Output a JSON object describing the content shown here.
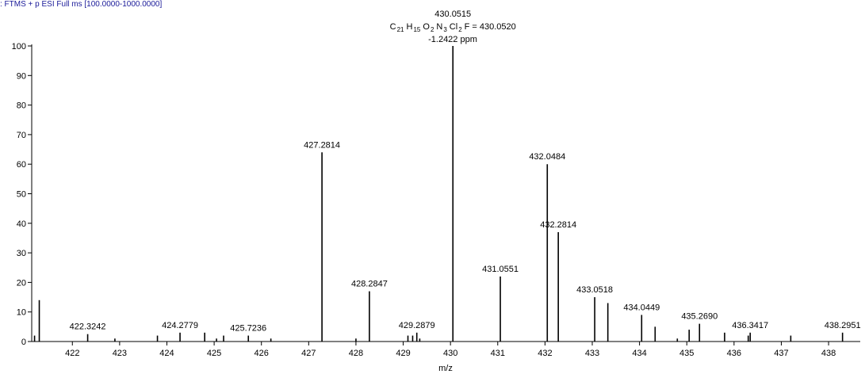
{
  "chart_data": {
    "type": "spectrum",
    "title": ": FTMS + p ESI Full ms [100.0000-1000.0000]",
    "xlabel": "m/z",
    "formula": [
      "C",
      "21",
      "H",
      "15",
      "O",
      "2",
      "N",
      "3",
      "Cl",
      "2",
      "F = 430.0520"
    ],
    "ppm": "-1.2422 ppm",
    "color": "#000000",
    "x": [
      421.2,
      421.3,
      422.3242,
      422.9,
      423.8,
      424.2779,
      424.8,
      425.05,
      425.2,
      425.7236,
      426.2,
      427.2814,
      428.0,
      428.2847,
      429.1,
      429.2,
      429.2879,
      429.35,
      430.0515,
      431.0551,
      432.0484,
      432.2814,
      433.0518,
      433.33,
      434.0449,
      434.33,
      434.8,
      435.05,
      435.269,
      435.8,
      436.3,
      436.3417,
      437.2,
      438.2951
    ],
    "values": [
      2,
      14,
      2.5,
      1,
      2,
      3,
      3,
      1,
      2,
      2,
      1,
      64,
      1,
      17,
      2,
      2,
      3,
      1,
      100,
      22,
      60,
      37,
      15,
      13,
      9,
      5,
      1,
      4,
      6,
      3,
      2,
      3,
      2,
      3
    ],
    "x_labels": [
      null,
      null,
      "422.3242",
      null,
      null,
      "424.2779",
      null,
      null,
      null,
      "425.7236",
      null,
      "427.2814",
      null,
      "428.2847",
      null,
      null,
      "429.2879",
      null,
      "430.0515",
      "431.0551",
      "432.0484",
      "432.2814",
      "433.0518",
      null,
      "434.0449",
      null,
      null,
      null,
      "435.2690",
      null,
      null,
      "436.3417",
      null,
      "438.2951"
    ],
    "xlim": [
      421.14,
      438.67
    ],
    "xticks": [
      422,
      423,
      424,
      425,
      426,
      427,
      428,
      429,
      430,
      431,
      432,
      433,
      434,
      435,
      436,
      437,
      438
    ],
    "ylim": [
      0,
      100
    ],
    "yticks": [
      0,
      10,
      20,
      30,
      40,
      50,
      60,
      70,
      80,
      90,
      100
    ]
  }
}
